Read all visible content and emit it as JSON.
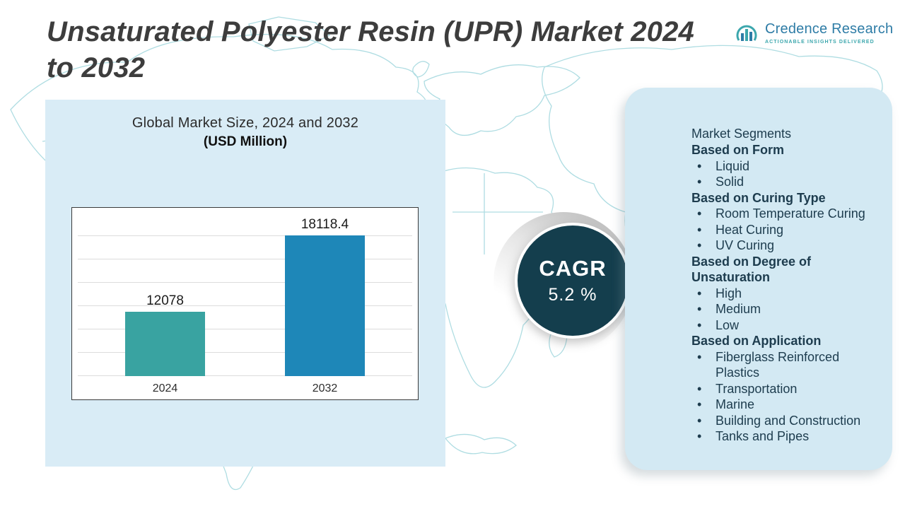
{
  "title": "Unsaturated Polyester Resin (UPR) Market 2024 to 2032",
  "logo": {
    "name": "Credence Research",
    "tagline": "ACTIONABLE INSIGHTS DELIVERED"
  },
  "chart_data": {
    "type": "bar",
    "title": "Global Market Size, 2024 and 2032",
    "subtitle": "(USD Million)",
    "categories": [
      "2024",
      "2032"
    ],
    "values": [
      12078,
      18118.4
    ],
    "ylim": [
      7000,
      20000
    ],
    "grid": true,
    "legend": "none",
    "bar_colors": [
      "#39a3a1",
      "#1e87b8"
    ]
  },
  "cagr": {
    "label": "CAGR",
    "value": "5.2 %"
  },
  "segments": {
    "title": "Market Segments",
    "bullet": "•",
    "groups": [
      {
        "heading": "Based on Form",
        "items": [
          "Liquid",
          "Solid"
        ]
      },
      {
        "heading": "Based on Curing Type",
        "items": [
          "Room Temperature Curing",
          "Heat Curing",
          "UV Curing"
        ]
      },
      {
        "heading": "Based on Degree of Unsaturation",
        "items": [
          "High",
          "Medium",
          "Low"
        ]
      },
      {
        "heading": "Based on Application",
        "items": [
          "Fiberglass Reinforced Plastics",
          "Transportation",
          "Marine",
          "Building and Construction",
          "Tanks and Pipes"
        ]
      }
    ]
  },
  "colors": {
    "bar_2024": "#39a3a1",
    "bar_2032": "#1e87b8",
    "cagr_circle": "#143e4d",
    "left_panel_bg": "#d9ecf6",
    "right_panel_bg": "#d3e9f3",
    "map_line": "#a6d9df",
    "title_text": "#3d3d3d",
    "segments_text": "#1d3c4e",
    "logo_blue": "#2e7ca6",
    "logo_teal": "#3ca7ad"
  }
}
